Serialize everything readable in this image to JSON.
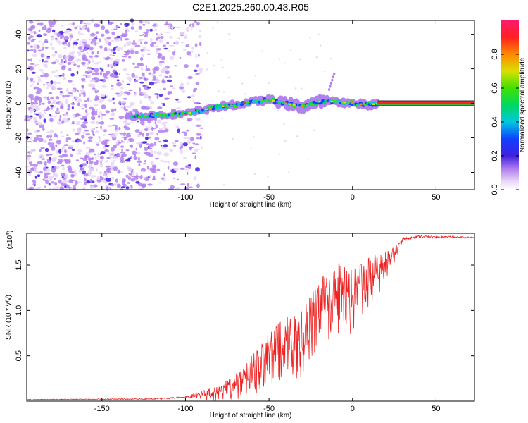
{
  "title": "C2E1.2025.260.00.43.R05",
  "colors": {
    "snr_line": "#ee2222",
    "dot_purple": "#8a2be2",
    "frame": "#000000"
  },
  "colorbar": {
    "label": "Normalized spectral amplitude",
    "ticks": [
      "0.0",
      "0.2",
      "0.4",
      "0.6",
      "0.8"
    ],
    "range": [
      0,
      1
    ]
  },
  "chart_data": [
    {
      "type": "heatmap",
      "title": "C2E1.2025.260.00.43.R05",
      "xlabel": "Height of straight line (km)",
      "ylabel": "Frequency (Hz)",
      "xlim": [
        -195,
        73
      ],
      "ylim": [
        -50,
        48
      ],
      "x_ticks": [
        -150,
        -100,
        -50,
        0,
        50
      ],
      "x_tick_labels": [
        "-150",
        "-100",
        "-50",
        "0",
        "50"
      ],
      "y_ticks": [
        40,
        20,
        0,
        -20,
        -40
      ],
      "y_tick_labels": [
        "40",
        "20",
        "0",
        "-20",
        "-40"
      ],
      "ridge": {
        "description_points_km_hz": [
          [
            -135,
            -8
          ],
          [
            -120,
            -7
          ],
          [
            -100,
            -6
          ],
          [
            -90,
            -4
          ],
          [
            -80,
            -2
          ],
          [
            -70,
            -1
          ],
          [
            -60,
            1
          ],
          [
            -50,
            2
          ],
          [
            -40,
            0
          ],
          [
            -30,
            -2
          ],
          [
            -20,
            1
          ],
          [
            -10,
            1
          ],
          [
            0,
            0
          ],
          [
            10,
            -1
          ],
          [
            15,
            0
          ],
          [
            73,
            0
          ]
        ],
        "steady_band_hz": 0,
        "steady_band_start_km": 15,
        "steady_band_amplitude": 0.95
      },
      "noise_region_km": [
        -195,
        -98
      ]
    },
    {
      "type": "line",
      "xlabel": "Height of straight line (km)",
      "ylabel": "SNR (10 * v/v)",
      "y_scale_label_base": "(x10",
      "y_scale_label_exp": "4",
      "y_scale_label_close": ")",
      "xlim": [
        -195,
        73
      ],
      "ylim": [
        0,
        1.85
      ],
      "x_ticks": [
        -150,
        -100,
        -50,
        0,
        50
      ],
      "x_tick_labels": [
        "-150",
        "-100",
        "-50",
        "0",
        "50"
      ],
      "y_ticks": [
        0.5,
        1.0,
        1.5
      ],
      "y_tick_labels": [
        "0.5",
        "1.0",
        "1.5"
      ],
      "envelope_points": [
        [
          -195,
          0.02
        ],
        [
          -120,
          0.03
        ],
        [
          -100,
          0.05
        ],
        [
          -90,
          0.12
        ],
        [
          -80,
          0.18
        ],
        [
          -70,
          0.3
        ],
        [
          -60,
          0.55
        ],
        [
          -50,
          0.75
        ],
        [
          -40,
          0.95
        ],
        [
          -30,
          1.0
        ],
        [
          -20,
          1.35
        ],
        [
          -10,
          1.55
        ],
        [
          0,
          1.45
        ],
        [
          10,
          1.6
        ],
        [
          20,
          1.65
        ],
        [
          25,
          1.7
        ],
        [
          30,
          1.8
        ],
        [
          40,
          1.83
        ],
        [
          50,
          1.82
        ],
        [
          60,
          1.82
        ],
        [
          73,
          1.81
        ]
      ],
      "noise_amplitude_points": [
        [
          -195,
          0.005
        ],
        [
          -100,
          0.01
        ],
        [
          -90,
          0.06
        ],
        [
          -70,
          0.18
        ],
        [
          -55,
          0.35
        ],
        [
          -40,
          0.45
        ],
        [
          -25,
          0.5
        ],
        [
          -10,
          0.5
        ],
        [
          0,
          0.45
        ],
        [
          10,
          0.35
        ],
        [
          20,
          0.25
        ],
        [
          28,
          0.05
        ],
        [
          35,
          0.02
        ],
        [
          73,
          0.01
        ]
      ]
    }
  ]
}
